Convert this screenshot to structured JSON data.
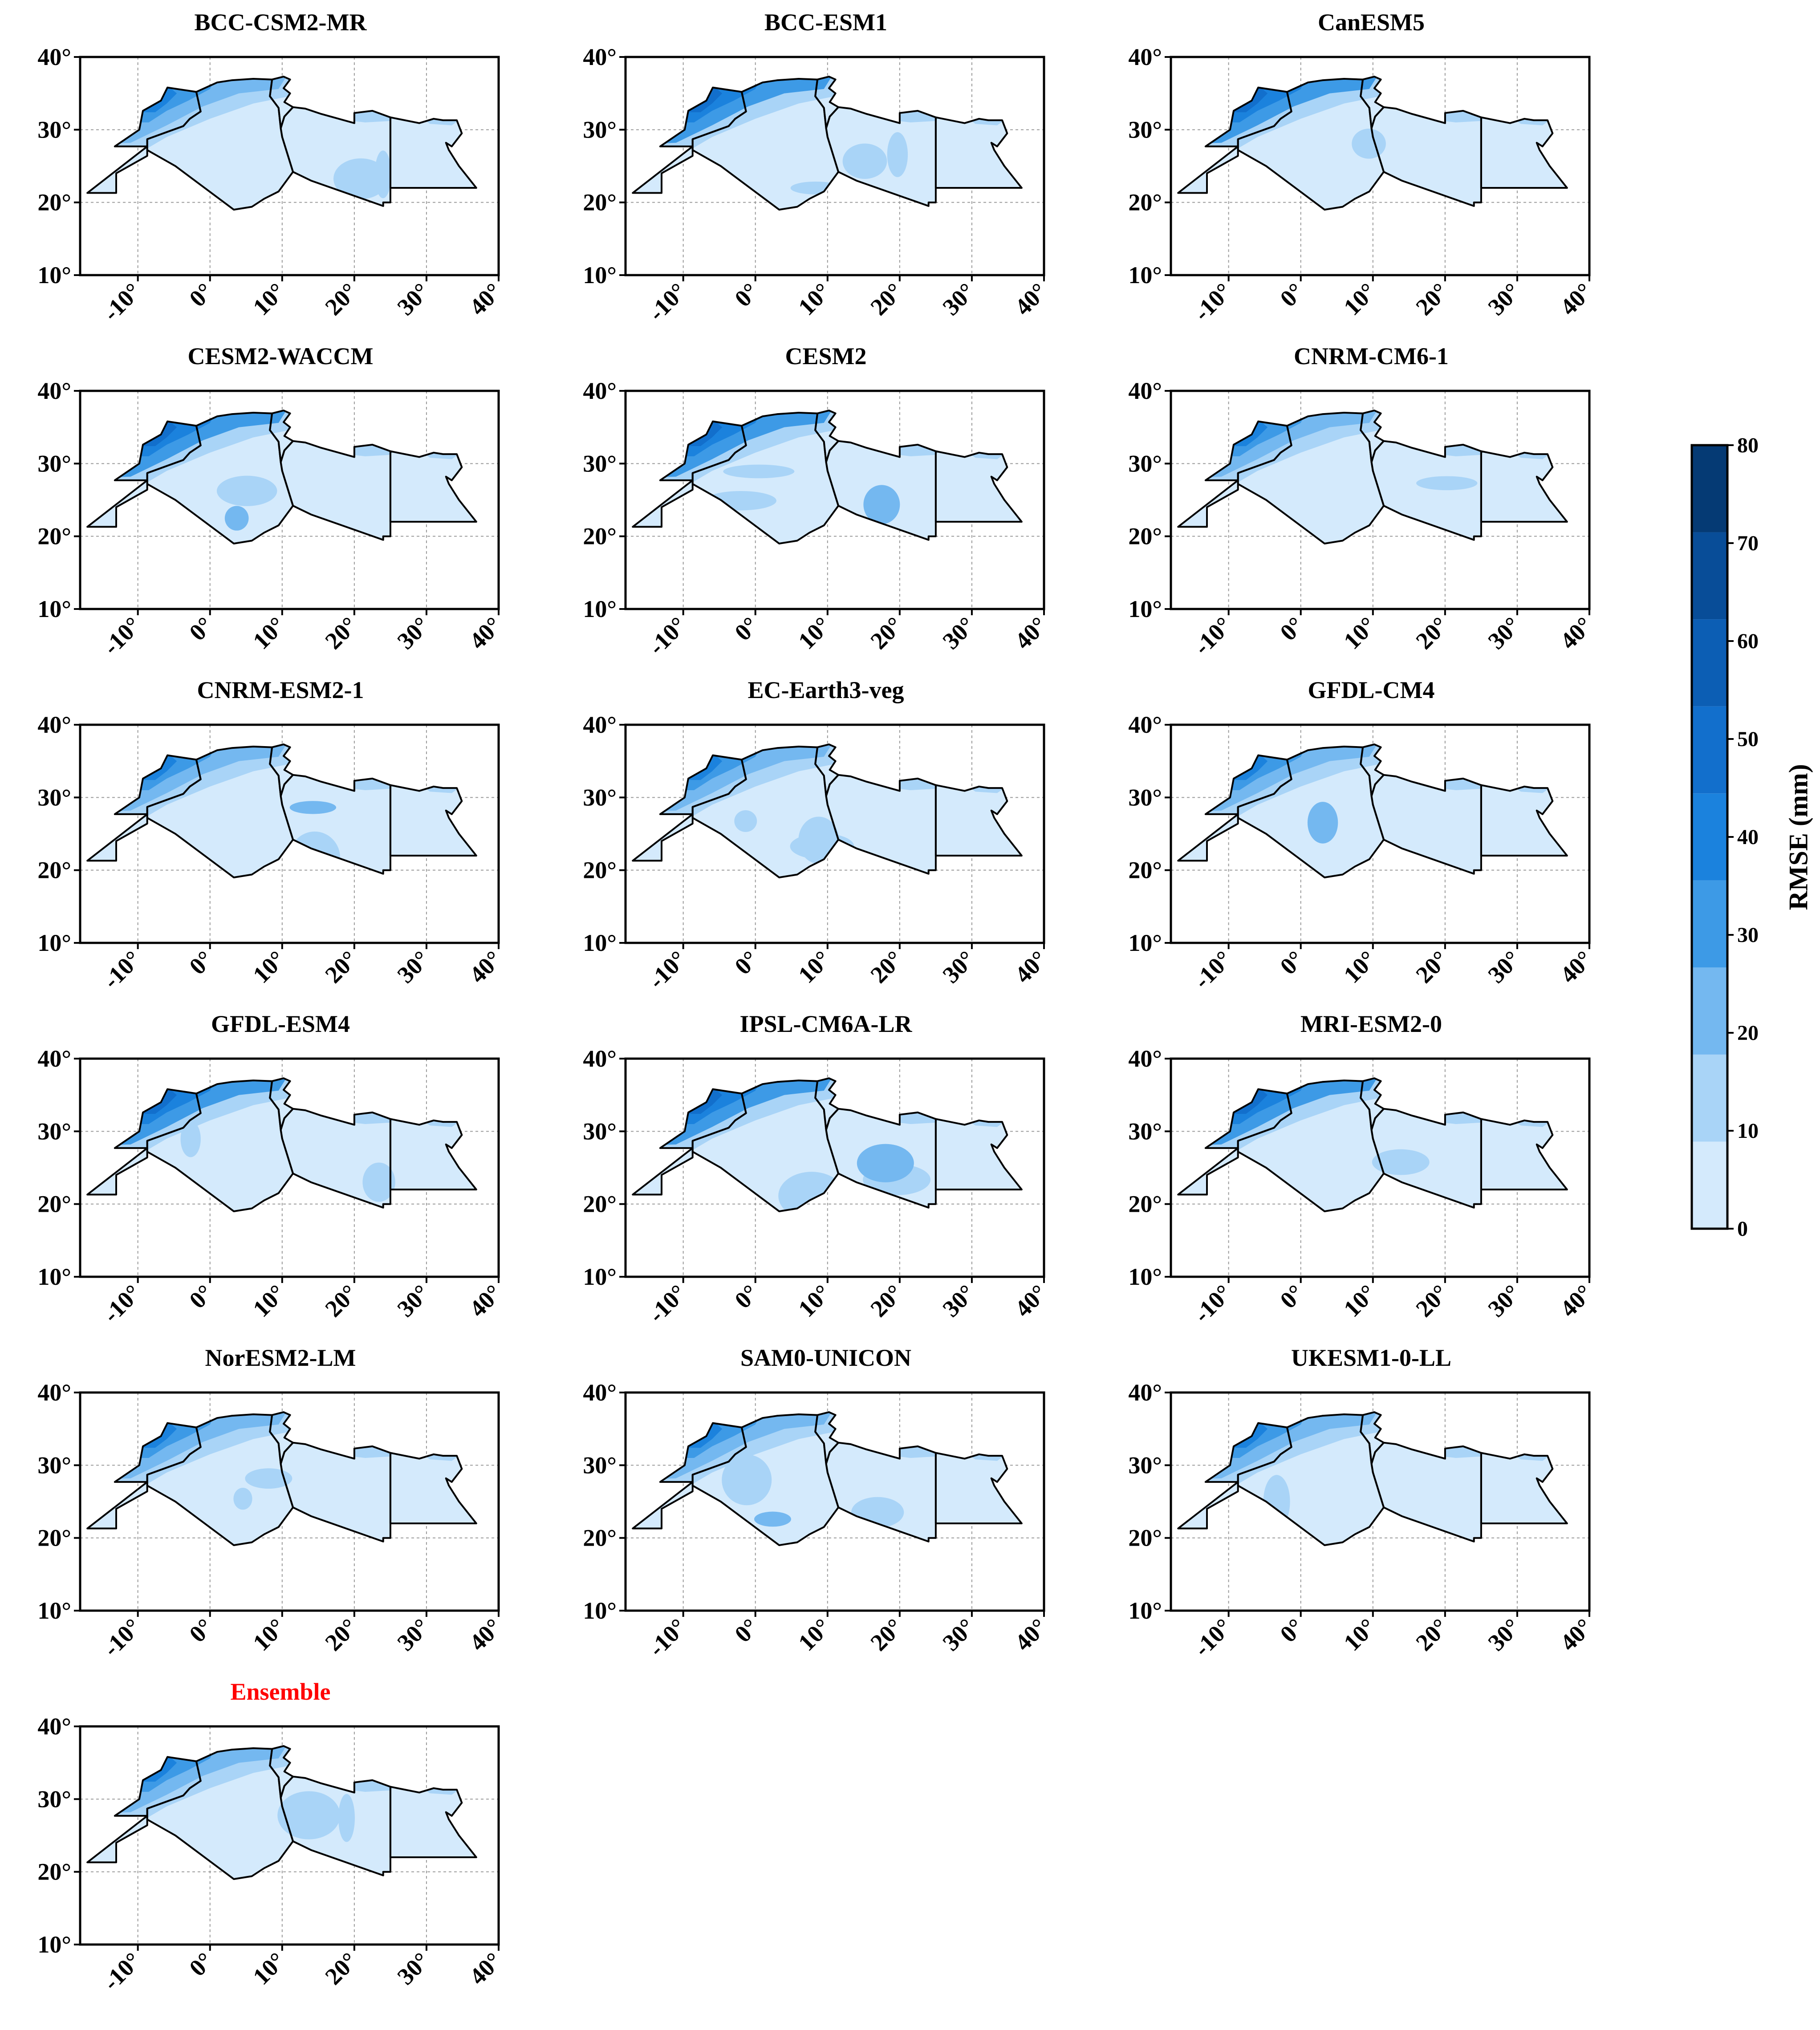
{
  "figure": {
    "panels": [
      {
        "title": "BCC-CSM2-MR"
      },
      {
        "title": "BCC-ESM1"
      },
      {
        "title": "CanESM5"
      },
      {
        "title": "CESM2-WACCM"
      },
      {
        "title": "CESM2"
      },
      {
        "title": "CNRM-CM6-1"
      },
      {
        "title": "CNRM-ESM2-1"
      },
      {
        "title": "EC-Earth3-veg"
      },
      {
        "title": "GFDL-CM4"
      },
      {
        "title": "GFDL-ESM4"
      },
      {
        "title": "IPSL-CM6A-LR"
      },
      {
        "title": "MRI-ESM2-0"
      },
      {
        "title": "NorESM2-LM"
      },
      {
        "title": "SAM0-UNICON"
      },
      {
        "title": "UKESM1-0-LL"
      },
      {
        "title": "Ensemble",
        "highlight_color": "#ff0000"
      }
    ],
    "lat_ticks": [
      "10°",
      "20°",
      "30°",
      "40°"
    ],
    "lon_ticks": [
      "-10°",
      "0°",
      "10°",
      "20°",
      "30°",
      "40°"
    ],
    "colorbar": {
      "label": "RMSE (mm)",
      "ticks": [
        "0",
        "10",
        "20",
        "30",
        "40",
        "50",
        "60",
        "70",
        "80"
      ],
      "colors": [
        "#d4eafc",
        "#a9d4f7",
        "#74b8f0",
        "#3d9ae6",
        "#1b82dd",
        "#126fcc",
        "#0c5eb4",
        "#084d98",
        "#053a74"
      ]
    }
  },
  "chart_data": {
    "type": "map",
    "variable": "RMSE (mm)",
    "lat_range": [
      10,
      40
    ],
    "lon_range": [
      -18,
      40
    ],
    "grid": true,
    "colorbar_levels": [
      0,
      10,
      20,
      30,
      40,
      50,
      60,
      70,
      80
    ],
    "models": [
      "BCC-CSM2-MR",
      "BCC-ESM1",
      "CanESM5",
      "CESM2-WACCM",
      "CESM2",
      "CNRM-CM6-1",
      "CNRM-ESM2-1",
      "EC-Earth3-veg",
      "GFDL-CM4",
      "GFDL-ESM4",
      "IPSL-CM6A-LR",
      "MRI-ESM2-0",
      "NorESM2-LM",
      "SAM0-UNICON",
      "UKESM1-0-LL",
      "Ensemble"
    ]
  }
}
